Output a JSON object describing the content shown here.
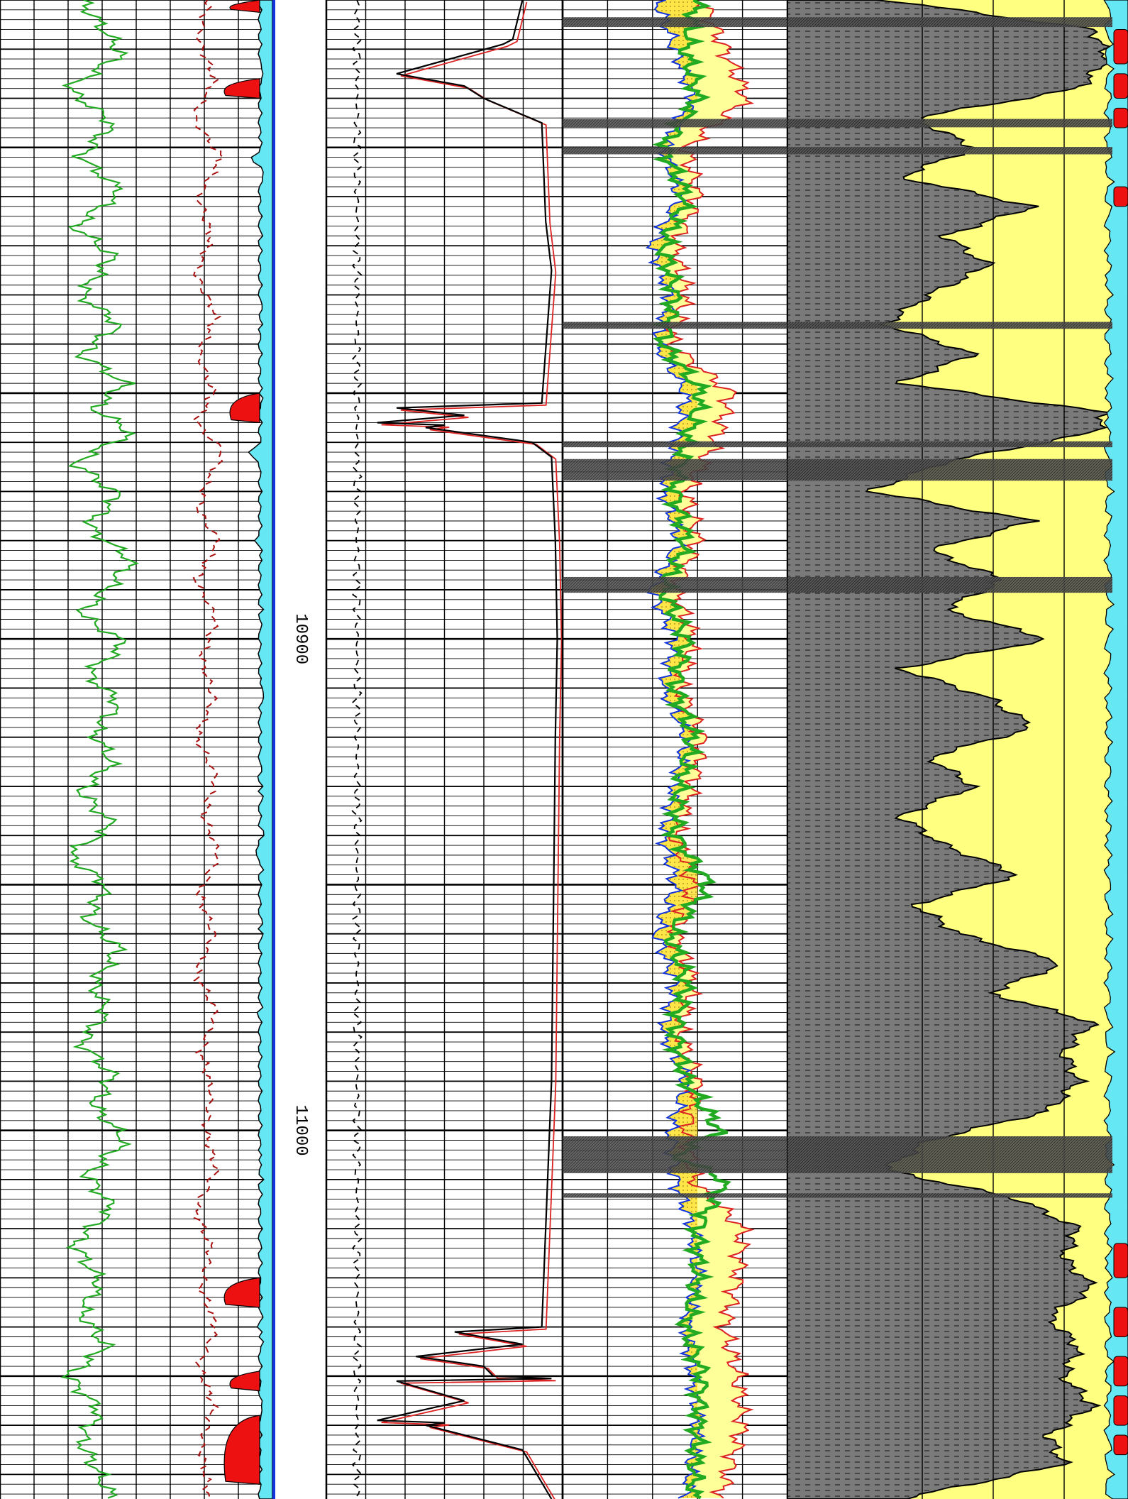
{
  "chart_data": {
    "type": "line",
    "title": "",
    "orientation": "depth-down",
    "depth_range": [
      10770,
      11075
    ],
    "depth_ticks": [
      10900,
      11000
    ],
    "depth_tick_labels": [
      "10900",
      "11000"
    ],
    "colors": {
      "grid": "#000000",
      "gamma_ray": "#22aa22",
      "caliper": "#aa1111",
      "resistivity_deep": "#000000",
      "resistivity_shallow": "#dd2222",
      "neutron": "#1133dd",
      "density": "#dd2222",
      "sonic": "#22aa22",
      "porosity_fill": "#ffe23a",
      "crossover_fill": "#ffff99",
      "shale": "#666666",
      "sand": "#ffff80",
      "water": "#66e8f4",
      "hydrocarbon": "#ee1111",
      "depth_track_border": "#1133dd"
    },
    "coal_intervals": [
      [
        10773.5,
        10775.5
      ],
      [
        10794.2,
        10795.9
      ],
      [
        10799.9,
        10801.4
      ],
      [
        10835.5,
        10836.9
      ],
      [
        10859.8,
        10861.0
      ],
      [
        10863.4,
        10867.8
      ],
      [
        10887.4,
        10890.6
      ],
      [
        11001.2,
        11008.7
      ],
      [
        11012.8,
        11013.7
      ]
    ],
    "series": [
      {
        "name": "gamma_ray",
        "track": 1,
        "depth": [
          10770,
          10775,
          10781,
          10788,
          10795,
          10802,
          10809,
          10816,
          10822,
          10830,
          10836,
          10842,
          10848,
          10853,
          10858,
          10864,
          10871,
          10877,
          10884,
          10890,
          10895,
          10901,
          10907,
          10913,
          10919,
          10925,
          10931,
          10938,
          10944,
          10950,
          10957,
          10963,
          10970,
          10976,
          10982,
          10989,
          10995,
          11002,
          11009,
          11016,
          11023,
          11031,
          11037,
          11044,
          11050,
          11057,
          11063,
          11068,
          11075
        ],
        "value": [
          0.3,
          0.45,
          0.62,
          0.2,
          0.55,
          0.3,
          0.62,
          0.25,
          0.55,
          0.3,
          0.6,
          0.3,
          0.65,
          0.4,
          0.7,
          0.25,
          0.6,
          0.35,
          0.7,
          0.5,
          0.3,
          0.65,
          0.35,
          0.6,
          0.4,
          0.55,
          0.3,
          0.55,
          0.2,
          0.5,
          0.35,
          0.6,
          0.4,
          0.5,
          0.3,
          0.55,
          0.4,
          0.65,
          0.35,
          0.55,
          0.25,
          0.45,
          0.3,
          0.5,
          0.2,
          0.45,
          0.3,
          0.4,
          0.55
        ]
      },
      {
        "name": "caliper",
        "track": 1,
        "depth": [
          10770,
          10778,
          10786,
          10794,
          10802,
          10810,
          10818,
          10826,
          10834,
          10842,
          10850,
          10856,
          10862,
          10868,
          10874,
          10880,
          10888,
          10896,
          10904,
          10912,
          10920,
          10928,
          10936,
          10944,
          10952,
          10960,
          10968,
          10976,
          10984,
          10992,
          11000,
          11008,
          11016,
          11024,
          11032,
          11040,
          11048,
          11056,
          11064,
          11075
        ],
        "value": [
          0.8,
          0.72,
          0.85,
          0.68,
          0.9,
          0.72,
          0.82,
          0.7,
          0.86,
          0.72,
          0.84,
          0.7,
          0.92,
          0.78,
          0.72,
          0.88,
          0.7,
          0.86,
          0.74,
          0.84,
          0.7,
          0.86,
          0.76,
          0.88,
          0.72,
          0.84,
          0.7,
          0.86,
          0.74,
          0.82,
          0.78,
          0.86,
          0.7,
          0.82,
          0.74,
          0.86,
          0.72,
          0.84,
          0.74,
          0.8
        ]
      },
      {
        "name": "resistivity_deep",
        "track": 2,
        "depth": [
          10770,
          10778,
          10779,
          10785,
          10790,
          10795,
          10815,
          10825,
          10852,
          10853,
          10856,
          10857,
          10860,
          10863,
          10880,
          10900,
          10920,
          10990,
          11040,
          11041,
          11046,
          11050,
          11051,
          11059,
          11060,
          11065,
          11075
        ],
        "value": [
          0.2,
          0.25,
          0.3,
          0.85,
          0.4,
          0.1,
          0.08,
          0.05,
          0.1,
          0.85,
          0.95,
          0.7,
          0.15,
          0.05,
          0.03,
          0.02,
          0.03,
          0.05,
          0.1,
          0.55,
          0.75,
          0.35,
          0.85,
          0.95,
          0.7,
          0.2,
          0.05
        ]
      },
      {
        "name": "neutron",
        "track": 3,
        "depth": [
          10770,
          10780,
          10790,
          10800,
          10810,
          10820,
          10830,
          10840,
          10850,
          10860,
          10870,
          10880,
          10890,
          10900,
          10910,
          10920,
          10930,
          10940,
          10950,
          10960,
          10970,
          10980,
          10990,
          11000,
          11010,
          11020,
          11030,
          11040,
          11050,
          11060,
          11075
        ],
        "value": [
          0.42,
          0.5,
          0.58,
          0.45,
          0.52,
          0.4,
          0.48,
          0.42,
          0.55,
          0.5,
          0.45,
          0.52,
          0.4,
          0.5,
          0.45,
          0.55,
          0.5,
          0.45,
          0.5,
          0.42,
          0.5,
          0.45,
          0.55,
          0.48,
          0.5,
          0.58,
          0.6,
          0.55,
          0.58,
          0.6,
          0.55
        ]
      },
      {
        "name": "density",
        "track": 3,
        "depth": [
          10770,
          10780,
          10790,
          10800,
          10810,
          10820,
          10830,
          10840,
          10850,
          10860,
          10870,
          10880,
          10890,
          10900,
          10910,
          10920,
          10930,
          10940,
          10950,
          10960,
          10970,
          10980,
          10990,
          11000,
          11010,
          11020,
          11030,
          11040,
          11050,
          11060,
          11075
        ],
        "value": [
          0.62,
          0.72,
          0.82,
          0.55,
          0.6,
          0.5,
          0.55,
          0.48,
          0.75,
          0.68,
          0.55,
          0.6,
          0.5,
          0.58,
          0.52,
          0.62,
          0.58,
          0.5,
          0.58,
          0.5,
          0.58,
          0.52,
          0.6,
          0.55,
          0.58,
          0.8,
          0.78,
          0.72,
          0.78,
          0.8,
          0.7
        ]
      },
      {
        "name": "sonic",
        "track": 3,
        "depth": [
          10770,
          10780,
          10790,
          10800,
          10810,
          10820,
          10830,
          10840,
          10850,
          10860,
          10870,
          10880,
          10890,
          10900,
          10910,
          10920,
          10930,
          10940,
          10950,
          10960,
          10970,
          10980,
          10990,
          11000,
          11005,
          11010,
          11020,
          11030,
          11040,
          11050,
          11060,
          11075
        ],
        "value": [
          0.6,
          0.55,
          0.6,
          0.45,
          0.55,
          0.45,
          0.5,
          0.45,
          0.62,
          0.55,
          0.5,
          0.55,
          0.45,
          0.55,
          0.5,
          0.58,
          0.52,
          0.5,
          0.65,
          0.48,
          0.55,
          0.5,
          0.55,
          0.7,
          0.5,
          0.72,
          0.6,
          0.6,
          0.55,
          0.62,
          0.6,
          0.58
        ]
      },
      {
        "name": "shale_volume",
        "track": 4,
        "depth": [
          10770,
          10776,
          10782,
          10788,
          10794,
          10800,
          10806,
          10812,
          10818,
          10824,
          10830,
          10836,
          10842,
          10848,
          10854,
          10858,
          10864,
          10870,
          10876,
          10882,
          10888,
          10894,
          10900,
          10906,
          10912,
          10918,
          10924,
          10930,
          10936,
          10942,
          10948,
          10954,
          10960,
          10966,
          10972,
          10978,
          10984,
          10990,
          10996,
          11002,
          11008,
          11014,
          11020,
          11026,
          11032,
          11038,
          11044,
          11050,
          11056,
          11062,
          11068,
          11075
        ],
        "value": [
          0.9,
          0.2,
          0.15,
          0.25,
          0.8,
          0.6,
          0.85,
          0.4,
          0.7,
          0.55,
          0.75,
          0.9,
          0.6,
          0.85,
          0.15,
          0.2,
          0.7,
          0.95,
          0.4,
          0.75,
          0.5,
          0.7,
          0.35,
          0.85,
          0.55,
          0.4,
          0.75,
          0.6,
          0.85,
          0.7,
          0.45,
          0.8,
          0.65,
          0.3,
          0.55,
          0.2,
          0.3,
          0.25,
          0.35,
          0.75,
          0.9,
          0.45,
          0.25,
          0.3,
          0.2,
          0.35,
          0.25,
          0.3,
          0.2,
          0.35,
          0.3,
          0.85
        ]
      }
    ]
  }
}
